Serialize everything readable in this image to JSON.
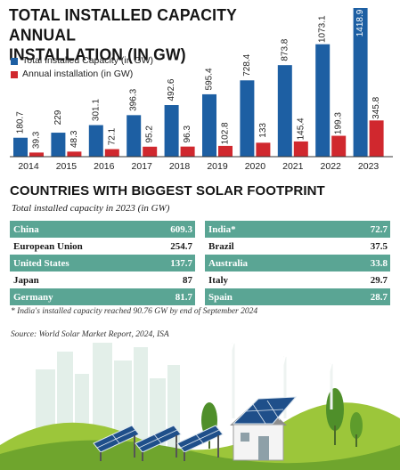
{
  "header": {
    "title_line1": "TOTAL INSTALLED CAPACITY ANNUAL",
    "title_line2": "INSTALLATION (IN GW)"
  },
  "colors": {
    "total": "#1d5fa3",
    "annual": "#d0282e",
    "teal": "#5aa594",
    "axis": "#333333"
  },
  "chart_data": {
    "type": "bar",
    "title": "TOTAL INSTALLED CAPACITY ANNUAL INSTALLATION (IN GW)",
    "categories": [
      "2014",
      "2015",
      "2016",
      "2017",
      "2018",
      "2019",
      "2020",
      "2021",
      "2022",
      "2023"
    ],
    "series": [
      {
        "name": "Total Installed Capacity (in GW)",
        "values": [
          180.7,
          229,
          301.1,
          396.3,
          492.6,
          595.4,
          728.4,
          873.8,
          1073.1,
          1418.9
        ]
      },
      {
        "name": "Annual installation (in GW)",
        "values": [
          39.3,
          48.3,
          72.1,
          95.2,
          96.3,
          102.8,
          133,
          145.4,
          199.3,
          345.8
        ]
      }
    ],
    "value_labels": {
      "total": [
        "180.7",
        "229",
        "301.1",
        "396.3",
        "492.6",
        "595.4",
        "728.4",
        "873.8",
        "1073.1",
        "1418.9"
      ],
      "annual": [
        "39.3",
        "48.3",
        "72.1",
        "95.2",
        "96.3",
        "102.8",
        "133",
        "145.4",
        "199.3",
        "345.8"
      ]
    },
    "legend_position": "top-left",
    "grid": false
  },
  "countries": {
    "title": "COUNTRIES WITH BIGGEST SOLAR FOOTPRINT",
    "subtitle": "Total installed capacity in 2023 (in GW)",
    "left": [
      {
        "name": "China",
        "value": "609.3"
      },
      {
        "name": "European Union",
        "value": "254.7"
      },
      {
        "name": "United States",
        "value": "137.7"
      },
      {
        "name": "Japan",
        "value": "87"
      },
      {
        "name": "Germany",
        "value": "81.7"
      }
    ],
    "right": [
      {
        "name": "India*",
        "value": "72.7"
      },
      {
        "name": "Brazil",
        "value": "37.5"
      },
      {
        "name": "Australia",
        "value": "33.8"
      },
      {
        "name": "Italy",
        "value": "29.7"
      },
      {
        "name": "Spain",
        "value": "28.7"
      }
    ]
  },
  "footnote": "* India's installed capacity reached 90.76 GW by end of September 2024",
  "source": "Source: World Solar Market Report, 2024, ISA"
}
